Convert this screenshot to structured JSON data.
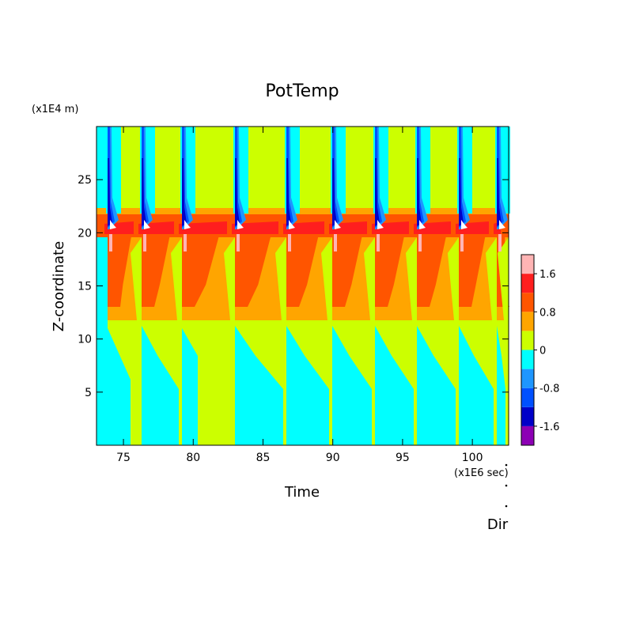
{
  "chart_data": {
    "type": "contour",
    "title": "PotTemp",
    "x_label": "Time",
    "y_label": "Z-coordinate",
    "x_unit": "(x1E6 sec)",
    "y_unit": "(x1E4 m)",
    "corner_label": "Dir",
    "xlim": [
      73.07,
      102.6
    ],
    "xticks": [
      75,
      80,
      85,
      90,
      95,
      100
    ],
    "ylim": [
      0,
      30
    ],
    "yticks": [
      5,
      10,
      15,
      20,
      25
    ],
    "colorbar": {
      "levels": [
        -2,
        -1.6,
        -1.2,
        -0.8,
        -0.4,
        0,
        0.4,
        0.8,
        1.2,
        1.6,
        2
      ],
      "colors": [
        "#8c00b4",
        "#0000c8",
        "#0050ff",
        "#1e96ff",
        "#00ffff",
        "#ccff00",
        "#ffa500",
        "#ff5500",
        "#ff1e1e",
        "#ffb4b4"
      ],
      "ticks": [
        -1.6,
        -0.8,
        0,
        0.8,
        1.6
      ]
    }
  }
}
